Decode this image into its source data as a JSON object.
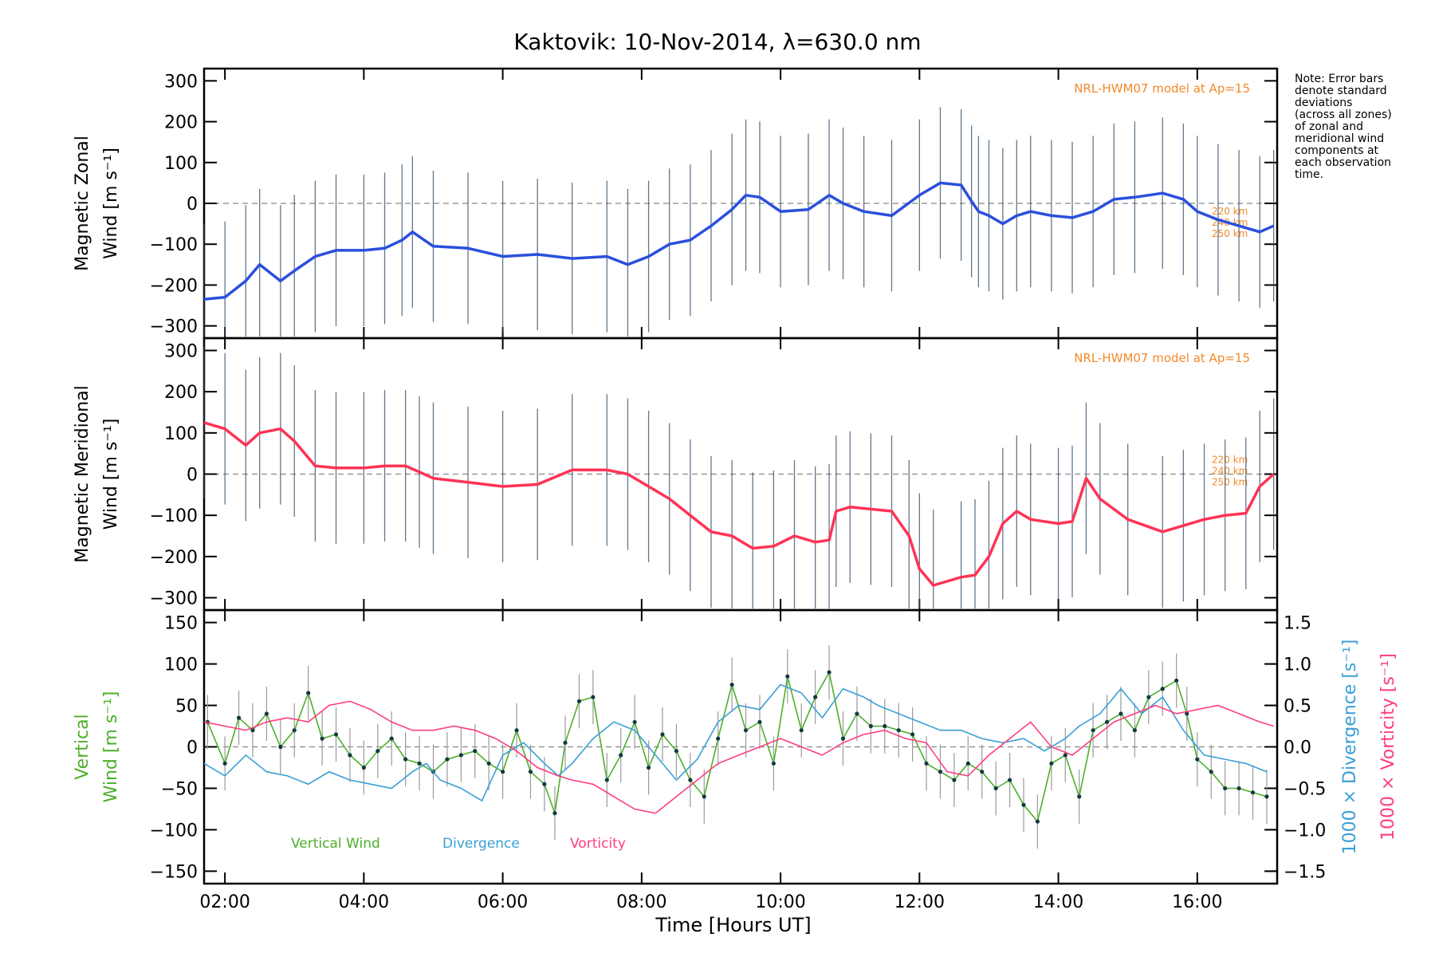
{
  "chart_data": {
    "title": "Kaktovik: 10-Nov-2014, λ=630.0 nm",
    "xlabel": "Time [Hours UT]",
    "xlim": [
      1.7,
      17.15
    ],
    "xticks": [
      2,
      4,
      6,
      8,
      10,
      12,
      14,
      16
    ],
    "xtick_labels": [
      "02:00",
      "04:00",
      "06:00",
      "08:00",
      "10:00",
      "12:00",
      "14:00",
      "16:00"
    ],
    "note": "Note: Error bars\ndenote standard\ndeviations\n(across all zones)\nof zonal and\nmeridional wind\ncomponents at\neach observation\ntime.",
    "panels": [
      {
        "id": "zonal",
        "type": "line",
        "ylabel_line1": "Magnetic Zonal",
        "ylabel_line2": "Wind [m s⁻¹]",
        "ylim": [
          -330,
          330
        ],
        "yticks": [
          -300,
          -200,
          -100,
          0,
          100,
          200,
          300
        ],
        "model_label": "NRL-HWM07 model at Ap=15",
        "model_alt_labels": [
          "220 km",
          "240 km",
          "250 km"
        ],
        "series": [
          {
            "name": "zonal-wind",
            "color": "#2b4fdd",
            "x": [
              1.7,
              2.0,
              2.3,
              2.5,
              2.8,
              3.0,
              3.3,
              3.6,
              4.0,
              4.3,
              4.55,
              4.7,
              5.0,
              5.5,
              6.0,
              6.5,
              7.0,
              7.5,
              7.8,
              8.1,
              8.4,
              8.7,
              9.0,
              9.3,
              9.5,
              9.7,
              10.0,
              10.4,
              10.7,
              10.9,
              11.2,
              11.6,
              12.0,
              12.3,
              12.6,
              12.75,
              12.85,
              13.0,
              13.2,
              13.4,
              13.6,
              13.9,
              14.2,
              14.5,
              14.8,
              15.1,
              15.5,
              15.8,
              16.0,
              16.3,
              16.6,
              16.9,
              17.1
            ],
            "y": [
              -235,
              -230,
              -190,
              -150,
              -190,
              -165,
              -130,
              -115,
              -115,
              -110,
              -90,
              -70,
              -105,
              -110,
              -130,
              -125,
              -135,
              -130,
              -150,
              -130,
              -100,
              -90,
              -55,
              -15,
              20,
              15,
              -20,
              -15,
              20,
              0,
              -20,
              -30,
              20,
              50,
              45,
              5,
              -20,
              -30,
              -50,
              -30,
              -20,
              -30,
              -35,
              -20,
              10,
              15,
              25,
              10,
              -20,
              -40,
              -55,
              -70,
              -55
            ]
          }
        ]
      },
      {
        "id": "meridional",
        "type": "line",
        "ylabel_line1": "Magnetic Meridional",
        "ylabel_line2": "Wind [m s⁻¹]",
        "ylim": [
          -330,
          330
        ],
        "yticks": [
          -300,
          -200,
          -100,
          0,
          100,
          200,
          300
        ],
        "model_label": "NRL-HWM07 model at Ap=15",
        "model_alt_labels": [
          "220 km",
          "240 km",
          "250 km"
        ],
        "series": [
          {
            "name": "meridional-wind",
            "color": "#ff3355",
            "x": [
              1.7,
              2.0,
              2.3,
              2.5,
              2.8,
              3.0,
              3.3,
              3.6,
              4.0,
              4.3,
              4.6,
              4.8,
              5.0,
              5.5,
              6.0,
              6.5,
              7.0,
              7.5,
              7.8,
              8.1,
              8.4,
              8.7,
              9.0,
              9.3,
              9.6,
              9.9,
              10.2,
              10.5,
              10.7,
              10.8,
              11.0,
              11.3,
              11.6,
              11.85,
              12.0,
              12.2,
              12.6,
              12.8,
              13.0,
              13.2,
              13.4,
              13.6,
              14.0,
              14.2,
              14.4,
              14.6,
              15.0,
              15.5,
              15.8,
              16.1,
              16.4,
              16.7,
              16.9,
              17.1
            ],
            "y": [
              125,
              110,
              70,
              100,
              110,
              80,
              20,
              15,
              15,
              20,
              20,
              5,
              -10,
              -20,
              -30,
              -25,
              10,
              10,
              0,
              -30,
              -60,
              -100,
              -140,
              -150,
              -180,
              -175,
              -150,
              -165,
              -160,
              -90,
              -80,
              -85,
              -90,
              -150,
              -230,
              -270,
              -250,
              -245,
              -200,
              -120,
              -90,
              -110,
              -120,
              -115,
              -10,
              -60,
              -110,
              -140,
              -125,
              -110,
              -100,
              -95,
              -30,
              0
            ]
          }
        ]
      },
      {
        "id": "vertical",
        "type": "line",
        "ylabel_line1": "Vertical",
        "ylabel_line2": "Wind [m s⁻¹]",
        "ylim": [
          -165,
          165
        ],
        "yticks": [
          -150,
          -100,
          -50,
          0,
          50,
          100,
          150
        ],
        "right_ylim": [
          -1.65,
          1.65
        ],
        "right_yticks": [
          -1.5,
          -1.0,
          -0.5,
          0.0,
          0.5,
          1.0,
          1.5
        ],
        "right_label_1": "1000 × Divergence [s⁻¹]",
        "right_label_2": "1000 × Vorticity [s⁻¹]",
        "legend": [
          {
            "name": "Vertical Wind",
            "color": "#4caf2a"
          },
          {
            "name": "Divergence",
            "color": "#3a9fd6"
          },
          {
            "name": "Vorticity",
            "color": "#ff3d7f"
          }
        ],
        "series": [
          {
            "name": "Vertical Wind",
            "color": "#4caf2a",
            "x": [
              1.75,
              2.0,
              2.2,
              2.4,
              2.6,
              2.8,
              3.0,
              3.2,
              3.4,
              3.6,
              3.8,
              4.0,
              4.2,
              4.4,
              4.6,
              4.8,
              5.0,
              5.2,
              5.4,
              5.6,
              5.8,
              6.0,
              6.2,
              6.4,
              6.6,
              6.75,
              6.9,
              7.1,
              7.3,
              7.5,
              7.7,
              7.9,
              8.1,
              8.3,
              8.5,
              8.7,
              8.9,
              9.1,
              9.3,
              9.5,
              9.7,
              9.9,
              10.1,
              10.3,
              10.5,
              10.7,
              10.9,
              11.1,
              11.3,
              11.5,
              11.7,
              11.9,
              12.1,
              12.3,
              12.5,
              12.7,
              12.9,
              13.1,
              13.3,
              13.5,
              13.7,
              13.9,
              14.1,
              14.3,
              14.5,
              14.7,
              14.9,
              15.1,
              15.3,
              15.5,
              15.7,
              15.85,
              16.0,
              16.2,
              16.4,
              16.6,
              16.8,
              17.0
            ],
            "y": [
              30,
              -20,
              35,
              20,
              40,
              0,
              20,
              65,
              10,
              15,
              -10,
              -25,
              -5,
              10,
              -15,
              -20,
              -30,
              -15,
              -10,
              -5,
              -20,
              -30,
              20,
              -30,
              -45,
              -80,
              5,
              55,
              60,
              -40,
              -10,
              30,
              -25,
              15,
              -5,
              -40,
              -60,
              10,
              75,
              20,
              30,
              -20,
              85,
              20,
              60,
              90,
              10,
              40,
              25,
              25,
              20,
              15,
              -20,
              -30,
              -40,
              -20,
              -30,
              -50,
              -40,
              -70,
              -90,
              -20,
              -10,
              -60,
              20,
              30,
              40,
              20,
              60,
              70,
              80,
              40,
              -15,
              -30,
              -50,
              -50,
              -55,
              -60
            ]
          },
          {
            "name": "Divergence",
            "color": "#3a9fd6",
            "scale": "right",
            "x": [
              1.7,
              2.0,
              2.3,
              2.6,
              2.9,
              3.2,
              3.5,
              3.8,
              4.1,
              4.4,
              4.7,
              4.9,
              5.1,
              5.4,
              5.7,
              6.0,
              6.3,
              6.6,
              6.8,
              7.0,
              7.3,
              7.6,
              7.9,
              8.2,
              8.5,
              8.8,
              9.1,
              9.4,
              9.7,
              10.0,
              10.3,
              10.6,
              10.9,
              11.2,
              11.4,
              11.7,
              12.0,
              12.3,
              12.6,
              12.9,
              13.2,
              13.5,
              13.8,
              14.1,
              14.3,
              14.6,
              14.9,
              15.2,
              15.5,
              15.8,
              16.1,
              16.4,
              16.7,
              17.0
            ],
            "y": [
              -0.2,
              -0.35,
              -0.1,
              -0.3,
              -0.35,
              -0.45,
              -0.3,
              -0.4,
              -0.45,
              -0.5,
              -0.3,
              -0.2,
              -0.4,
              -0.5,
              -0.65,
              -0.1,
              0.05,
              -0.2,
              -0.35,
              -0.2,
              0.1,
              0.3,
              0.2,
              -0.1,
              -0.4,
              -0.15,
              0.3,
              0.5,
              0.45,
              0.75,
              0.65,
              0.35,
              0.7,
              0.6,
              0.5,
              0.4,
              0.3,
              0.2,
              0.2,
              0.1,
              0.05,
              0.1,
              -0.05,
              0.1,
              0.25,
              0.4,
              0.7,
              0.4,
              0.6,
              0.2,
              -0.1,
              -0.15,
              -0.2,
              -0.3
            ]
          },
          {
            "name": "Vorticity",
            "color": "#ff3d7f",
            "scale": "right",
            "x": [
              1.7,
              2.0,
              2.3,
              2.6,
              2.9,
              3.2,
              3.5,
              3.8,
              4.1,
              4.4,
              4.7,
              5.0,
              5.3,
              5.6,
              5.9,
              6.2,
              6.5,
              6.8,
              7.0,
              7.3,
              7.6,
              7.9,
              8.2,
              8.5,
              8.8,
              9.1,
              9.4,
              9.7,
              10.0,
              10.3,
              10.6,
              10.9,
              11.2,
              11.5,
              11.8,
              12.1,
              12.4,
              12.7,
              13.0,
              13.3,
              13.6,
              13.9,
              14.2,
              14.5,
              14.8,
              15.1,
              15.4,
              15.7,
              16.0,
              16.3,
              16.6,
              16.9,
              17.1
            ],
            "y": [
              0.3,
              0.25,
              0.2,
              0.3,
              0.35,
              0.3,
              0.5,
              0.55,
              0.45,
              0.3,
              0.2,
              0.2,
              0.25,
              0.2,
              0.1,
              -0.05,
              -0.25,
              -0.35,
              -0.4,
              -0.45,
              -0.6,
              -0.75,
              -0.8,
              -0.6,
              -0.4,
              -0.2,
              -0.1,
              0.0,
              0.1,
              0.0,
              -0.1,
              0.05,
              0.15,
              0.2,
              0.1,
              0.05,
              -0.3,
              -0.35,
              -0.1,
              0.1,
              0.3,
              0.0,
              -0.1,
              0.1,
              0.3,
              0.4,
              0.5,
              0.4,
              0.45,
              0.5,
              0.4,
              0.3,
              0.25
            ]
          }
        ]
      }
    ]
  }
}
